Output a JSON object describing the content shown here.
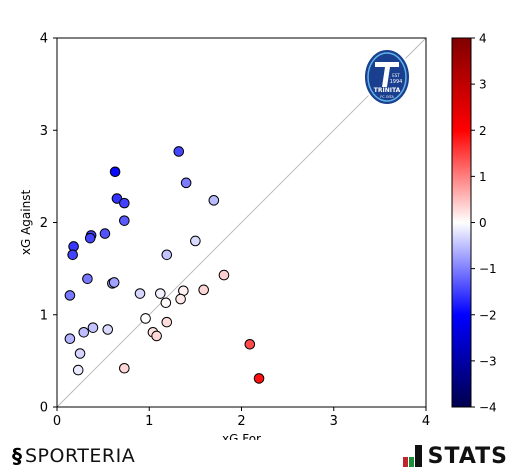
{
  "chart_data": {
    "type": "scatter",
    "xlabel": "xG For",
    "ylabel": "xG Against",
    "xlim": [
      0,
      4
    ],
    "ylim": [
      0,
      4
    ],
    "xticks": [
      "0",
      "1",
      "2",
      "3",
      "4"
    ],
    "yticks": [
      "0",
      "1",
      "2",
      "3",
      "4"
    ],
    "diagonal": "y = x reference line",
    "color_dimension": "xG For − xG Against",
    "colorbar": {
      "range": [
        -4,
        4
      ],
      "ticks": [
        "4",
        "3",
        "2",
        "1",
        "0",
        "−1",
        "−2",
        "−3",
        "−4"
      ],
      "colormap": "seismic"
    },
    "points": [
      {
        "x": 0.63,
        "y": 2.55
      },
      {
        "x": 1.32,
        "y": 2.77
      },
      {
        "x": 1.4,
        "y": 2.43
      },
      {
        "x": 0.65,
        "y": 2.26
      },
      {
        "x": 0.73,
        "y": 2.21
      },
      {
        "x": 1.7,
        "y": 2.24
      },
      {
        "x": 0.73,
        "y": 2.02
      },
      {
        "x": 0.18,
        "y": 1.74
      },
      {
        "x": 0.37,
        "y": 1.86
      },
      {
        "x": 0.52,
        "y": 1.88
      },
      {
        "x": 0.36,
        "y": 1.83
      },
      {
        "x": 0.17,
        "y": 1.65
      },
      {
        "x": 1.5,
        "y": 1.8
      },
      {
        "x": 1.19,
        "y": 1.65
      },
      {
        "x": 0.33,
        "y": 1.39
      },
      {
        "x": 0.6,
        "y": 1.34
      },
      {
        "x": 0.62,
        "y": 1.35
      },
      {
        "x": 0.14,
        "y": 1.21
      },
      {
        "x": 0.9,
        "y": 1.23
      },
      {
        "x": 1.12,
        "y": 1.23
      },
      {
        "x": 1.18,
        "y": 1.13
      },
      {
        "x": 1.37,
        "y": 1.26
      },
      {
        "x": 1.34,
        "y": 1.17
      },
      {
        "x": 1.59,
        "y": 1.27
      },
      {
        "x": 1.81,
        "y": 1.43
      },
      {
        "x": 0.96,
        "y": 0.96
      },
      {
        "x": 1.19,
        "y": 0.92
      },
      {
        "x": 1.04,
        "y": 0.81
      },
      {
        "x": 1.08,
        "y": 0.77
      },
      {
        "x": 0.39,
        "y": 0.86
      },
      {
        "x": 0.55,
        "y": 0.84
      },
      {
        "x": 0.29,
        "y": 0.81
      },
      {
        "x": 0.14,
        "y": 0.74
      },
      {
        "x": 0.25,
        "y": 0.58
      },
      {
        "x": 0.23,
        "y": 0.4
      },
      {
        "x": 0.73,
        "y": 0.42
      },
      {
        "x": 2.09,
        "y": 0.68
      },
      {
        "x": 2.19,
        "y": 0.31
      }
    ]
  },
  "team_logo": {
    "icon": "trinita-crest",
    "text_top": "EST",
    "text_year": "1994",
    "text_name": "TRINITA",
    "text_sub": "FC OITA"
  },
  "footer": {
    "left_brand": "SPORTERIA",
    "left_icon": "sporteria-s-icon",
    "right_brand": "STATS",
    "right_icon": "stats-bars-icon"
  }
}
